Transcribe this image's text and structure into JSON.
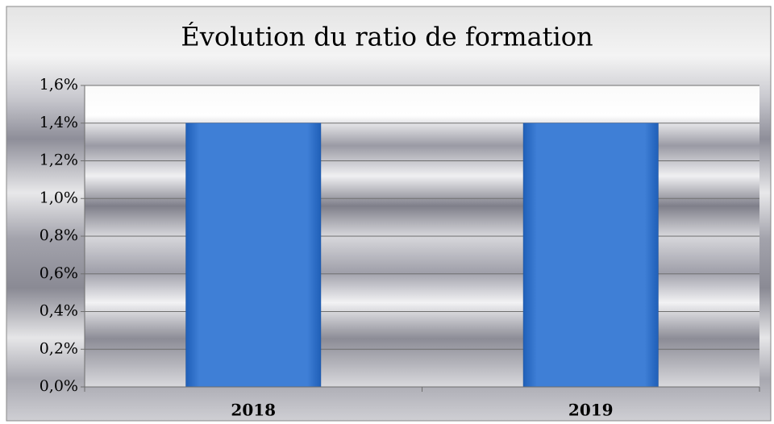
{
  "chart_data": {
    "type": "bar",
    "title": "Évolution du ratio de formation",
    "categories": [
      "2018",
      "2019"
    ],
    "values": [
      1.4,
      1.4
    ],
    "value_labels_note_free": null,
    "color": "#3f7fd6",
    "ylim": [
      0,
      1.6
    ],
    "yticks": [
      {
        "value": 0,
        "label": "0,0%"
      },
      {
        "value": 0.2,
        "label": "0,2%"
      },
      {
        "value": 0.4,
        "label": "0,4%"
      },
      {
        "value": 0.6,
        "label": "0,6%"
      },
      {
        "value": 0.8,
        "label": "0,8%"
      },
      {
        "value": 1.0,
        "label": "1,0%"
      },
      {
        "value": 1.2,
        "label": "1,2%"
      },
      {
        "value": 1.4,
        "label": "1,4%"
      },
      {
        "value": 1.6,
        "label": "1,6%"
      }
    ],
    "grid": true
  }
}
